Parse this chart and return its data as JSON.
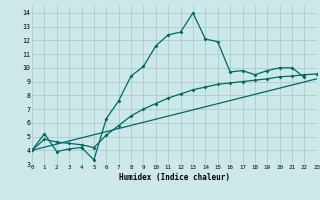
{
  "title": "",
  "xlabel": "Humidex (Indice chaleur)",
  "background_color": "#cde8e8",
  "grid_color": "#b0d0d0",
  "line_color": "#006868",
  "xlim": [
    0,
    23
  ],
  "ylim": [
    3,
    14.5
  ],
  "xticks": [
    0,
    1,
    2,
    3,
    4,
    5,
    6,
    7,
    8,
    9,
    10,
    11,
    12,
    13,
    14,
    15,
    16,
    17,
    18,
    19,
    20,
    21,
    22,
    23
  ],
  "yticks": [
    3,
    4,
    5,
    6,
    7,
    8,
    9,
    10,
    11,
    12,
    13,
    14
  ],
  "line1_x": [
    0,
    1,
    2,
    3,
    4,
    5,
    6,
    7,
    8,
    9,
    10,
    11,
    12,
    13,
    14,
    15,
    16,
    17,
    18,
    19,
    20,
    21,
    22
  ],
  "line1_y": [
    4.0,
    5.2,
    3.9,
    4.1,
    4.2,
    3.3,
    6.3,
    7.6,
    9.4,
    10.1,
    11.6,
    12.4,
    12.6,
    14.0,
    12.1,
    11.9,
    9.7,
    9.8,
    9.5,
    9.8,
    10.0,
    10.0,
    9.3
  ],
  "line2_x": [
    0,
    1,
    2,
    3,
    4,
    5,
    6,
    7,
    8,
    9,
    10,
    11,
    12,
    13,
    14,
    15,
    16,
    17,
    18,
    19,
    20,
    21,
    22,
    23
  ],
  "line2_y": [
    4.0,
    4.8,
    4.6,
    4.5,
    4.4,
    4.2,
    5.1,
    5.8,
    6.5,
    7.0,
    7.4,
    7.8,
    8.1,
    8.4,
    8.6,
    8.8,
    8.9,
    9.0,
    9.1,
    9.2,
    9.35,
    9.4,
    9.5,
    9.55
  ],
  "line3_x": [
    0,
    23
  ],
  "line3_y": [
    4.0,
    9.2
  ]
}
